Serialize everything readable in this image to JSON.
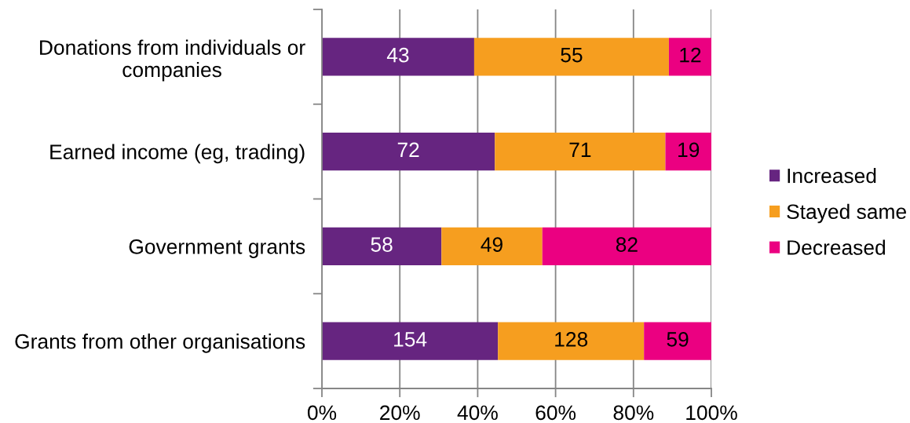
{
  "chart_data": {
    "type": "bar",
    "orientation": "horizontal",
    "stacked": true,
    "categories": [
      "Donations from individuals or\ncompanies",
      "Earned income (eg, trading)",
      "Government grants",
      "Grants from other organisations"
    ],
    "series": [
      {
        "name": "Increased",
        "color": "#662580",
        "values": [
          39.1,
          44.4,
          30.7,
          45.2
        ]
      },
      {
        "name": "Stayed same",
        "color": "#f69e1f",
        "values": [
          50.0,
          43.8,
          25.9,
          37.5
        ]
      },
      {
        "name": "Decreased",
        "color": "#eb0081",
        "values": [
          10.9,
          11.8,
          43.4,
          17.3
        ]
      }
    ],
    "xlim": [
      0,
      100
    ],
    "xticks": [
      {
        "value": 0,
        "label": "0%"
      },
      {
        "value": 20,
        "label": "20%"
      },
      {
        "value": 40,
        "label": "40%"
      },
      {
        "value": 60,
        "label": "60%"
      },
      {
        "value": 80,
        "label": "80%"
      },
      {
        "value": 100,
        "label": "100%"
      }
    ],
    "grid": "x",
    "legend": "right",
    "annotations": [
      "43",
      "55",
      "12",
      "72",
      "71",
      "19",
      "58",
      "49",
      "82",
      "154",
      "128",
      "59"
    ]
  }
}
